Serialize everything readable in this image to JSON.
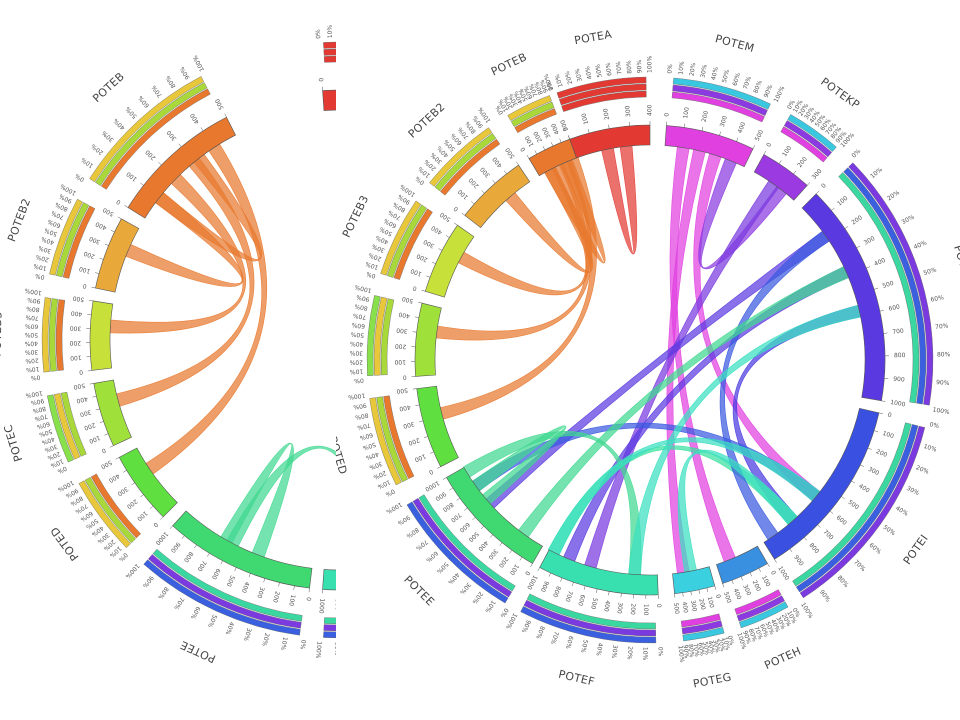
{
  "figure": {
    "panels": [
      {
        "id": "left",
        "cropped_right": true,
        "segments": [
          {
            "name": "POTEA",
            "color": "#e23a33",
            "max": 500,
            "ticks": [
              "0",
              "100",
              "200",
              "300",
              "400"
            ],
            "bars": [
              "#e23a33",
              "#e23a33",
              "#e23a33"
            ],
            "label_drawn": true
          },
          {
            "name": "POTEM",
            "color": "#e040e0",
            "max": 200,
            "ticks": [
              "0",
              "100"
            ],
            "bars": [
              "#e040e0",
              "#8a3ae0",
              "#3ac8e0"
            ],
            "label_drawn": false
          },
          {
            "name": "POTEB",
            "color": "#e8782e",
            "max": 500,
            "ticks": [
              "0",
              "100",
              "200",
              "300",
              "400",
              "500"
            ],
            "bars": [
              "#e8782e",
              "#a8d83a",
              "#e8c83a"
            ],
            "label_drawn": true
          },
          {
            "name": "POTEB2",
            "color": "#e8a83a",
            "max": 500,
            "ticks": [
              "0",
              "100",
              "200",
              "300",
              "400",
              "500"
            ],
            "bars": [
              "#e8782e",
              "#a8d83a",
              "#e8c83a"
            ],
            "label_drawn": true
          },
          {
            "name": "POTEB3",
            "color": "#c8e03a",
            "max": 500,
            "ticks": [
              "0",
              "100",
              "200",
              "300",
              "400",
              "500"
            ],
            "bars": [
              "#e8782e",
              "#a8d83a",
              "#e8c83a"
            ],
            "label_drawn": true
          },
          {
            "name": "POTEC",
            "color": "#a0e03a",
            "max": 500,
            "ticks": [
              "0",
              "100",
              "200",
              "300",
              "400",
              "500"
            ],
            "bars": [
              "#a8d83a",
              "#e8c83a",
              "#88e04a"
            ],
            "label_drawn": true
          },
          {
            "name": "POTED",
            "color": "#60e040",
            "max": 500,
            "ticks": [
              "0",
              "100",
              "200",
              "300",
              "400",
              "500"
            ],
            "bars": [
              "#e8782e",
              "#a8d83a",
              "#e8c83a"
            ],
            "label_drawn": true
          },
          {
            "name": "POTEE",
            "color": "#40d870",
            "max": 1000,
            "ticks": [
              "0",
              "100",
              "200",
              "300",
              "400",
              "500",
              "600",
              "700",
              "800",
              "900",
              "1000"
            ],
            "bars": [
              "#3ad8a0",
              "#7a3ae0",
              "#3a60e0"
            ],
            "label_drawn": true
          },
          {
            "name": "POTEF",
            "color": "#38e0b0",
            "max": 1000,
            "ticks": [
              "0",
              "100",
              "200",
              "300",
              "400",
              "500",
              "600",
              "700",
              "800",
              "900",
              "1000"
            ],
            "bars": [
              "#3ad8a0",
              "#7a3ae0",
              "#3a60e0"
            ],
            "label_drawn": false
          }
        ]
      },
      {
        "id": "right",
        "cropped_right": false,
        "segments": [
          {
            "name": "POTEA",
            "color": "#e23a33",
            "max": 500,
            "ticks": [
              "0",
              "100",
              "200",
              "300",
              "400"
            ],
            "bars": [
              "#e23a33",
              "#e23a33",
              "#e23a33"
            ],
            "label_drawn": true
          },
          {
            "name": "POTEM",
            "color": "#e040e0",
            "max": 500,
            "ticks": [
              "0",
              "100",
              "200",
              "300",
              "400",
              "500"
            ],
            "bars": [
              "#e040e0",
              "#8a3ae0",
              "#3ac8e0"
            ],
            "label_drawn": true
          },
          {
            "name": "POTEKP",
            "color": "#9a3ae0",
            "max": 300,
            "ticks": [
              "0",
              "100",
              "200",
              "300"
            ],
            "bars": [
              "#e040e0",
              "#8a3ae0",
              "#3ac8e0"
            ],
            "label_drawn": true
          },
          {
            "name": "POTEJ",
            "color": "#5a3ae0",
            "max": 1000,
            "ticks": [
              "0",
              "100",
              "200",
              "300",
              "400",
              "500",
              "600",
              "700",
              "800",
              "900",
              "1000"
            ],
            "bars": [
              "#3ad8a0",
              "#3a60e0",
              "#7a3ae0"
            ],
            "label_drawn": true
          },
          {
            "name": "POTEI",
            "color": "#3a50e0",
            "max": 1000,
            "ticks": [
              "0",
              "100",
              "200",
              "300",
              "400",
              "500",
              "600",
              "700",
              "800",
              "900",
              "1000"
            ],
            "bars": [
              "#3ad8a0",
              "#3a60e0",
              "#7a3ae0"
            ],
            "label_drawn": true
          },
          {
            "name": "POTEH",
            "color": "#3a90e0",
            "max": 500,
            "ticks": [
              "0",
              "100",
              "200",
              "300",
              "400",
              "500"
            ],
            "bars": [
              "#e040e0",
              "#8a3ae0",
              "#3ac8e0"
            ],
            "label_drawn": true
          },
          {
            "name": "POTEG",
            "color": "#3ad0e0",
            "max": 500,
            "ticks": [
              "0",
              "100",
              "200",
              "300",
              "400",
              "500"
            ],
            "bars": [
              "#e040e0",
              "#8a3ae0",
              "#3ac8e0"
            ],
            "label_drawn": true
          },
          {
            "name": "POTEF",
            "color": "#38e0b0",
            "max": 1000,
            "ticks": [
              "0",
              "100",
              "200",
              "300",
              "400",
              "500",
              "600",
              "700",
              "800",
              "900",
              "1000"
            ],
            "bars": [
              "#3ad8a0",
              "#7a3ae0",
              "#3a60e0"
            ],
            "label_drawn": true
          },
          {
            "name": "POTEE",
            "color": "#40d870",
            "max": 1000,
            "ticks": [
              "0",
              "100",
              "200",
              "300",
              "400",
              "500",
              "600",
              "700",
              "800",
              "900",
              "1000"
            ],
            "bars": [
              "#3ad8a0",
              "#7a3ae0",
              "#3a60e0"
            ],
            "label_drawn": true
          },
          {
            "name": "POTED",
            "color": "#60e040",
            "max": 500,
            "ticks": [
              "0",
              "100",
              "200",
              "300",
              "400",
              "500"
            ],
            "bars": [
              "#e8782e",
              "#a8d83a",
              "#e8c83a"
            ],
            "label_drawn": true
          },
          {
            "name": "POTEC",
            "color": "#a0e03a",
            "max": 500,
            "ticks": [
              "0",
              "100",
              "200",
              "300",
              "400",
              "500"
            ],
            "bars": [
              "#a8d83a",
              "#e8c83a",
              "#88e04a"
            ],
            "label_drawn": true
          },
          {
            "name": "POTEB3",
            "color": "#c8e03a",
            "max": 500,
            "ticks": [
              "0",
              "100",
              "200",
              "300",
              "400",
              "500"
            ],
            "bars": [
              "#e8782e",
              "#a8d83a",
              "#e8c83a"
            ],
            "label_drawn": true
          },
          {
            "name": "POTEB2",
            "color": "#e8a83a",
            "max": 500,
            "ticks": [
              "0",
              "100",
              "200",
              "300",
              "400",
              "500"
            ],
            "bars": [
              "#e8782e",
              "#a8d83a",
              "#e8c83a"
            ],
            "label_drawn": true
          },
          {
            "name": "POTEB",
            "color": "#e8782e",
            "max": 500,
            "ticks": [
              "0",
              "100",
              "200",
              "300",
              "400",
              "500"
            ],
            "bars": [
              "#e8782e",
              "#a8d83a",
              "#e8c83a"
            ],
            "label_drawn": true
          }
        ]
      }
    ],
    "percent_ticks": [
      "0%",
      "10%",
      "20%",
      "30%",
      "40%",
      "50%",
      "60%",
      "70%",
      "80%",
      "90%",
      "100%"
    ],
    "links": {
      "left": [
        {
          "from": "POTEB",
          "to": "POTEB2",
          "color": "#e8782e"
        },
        {
          "from": "POTEB",
          "to": "POTEB3",
          "color": "#e8782e"
        },
        {
          "from": "POTEB",
          "to": "POTEC",
          "color": "#e8782e"
        },
        {
          "from": "POTEB",
          "to": "POTED",
          "color": "#e8782e"
        },
        {
          "from": "POTEB",
          "to": "POTEB",
          "color": "#e8782e"
        },
        {
          "from": "POTEA",
          "to": "POTEA",
          "color": "#e23a33"
        },
        {
          "from": "POTEE",
          "to": "POTEE",
          "color": "#40d890"
        },
        {
          "from": "POTEE",
          "to": "POTEF",
          "color": "#40d890"
        },
        {
          "from": "POTEE",
          "to": "POTEJ",
          "color": "#6a3ae0"
        },
        {
          "from": "POTEE",
          "to": "POTEI",
          "color": "#3a5ae0"
        },
        {
          "from": "POTEF",
          "to": "POTEJ",
          "color": "#3ae0a0"
        },
        {
          "from": "POTEF",
          "to": "POTEI",
          "color": "#3ae0a0"
        }
      ],
      "right": [
        {
          "from": "POTEB",
          "to": "POTEB2",
          "color": "#e8782e"
        },
        {
          "from": "POTEB",
          "to": "POTEB3",
          "color": "#e8782e"
        },
        {
          "from": "POTEB",
          "to": "POTEC",
          "color": "#e8782e"
        },
        {
          "from": "POTEB",
          "to": "POTED",
          "color": "#e8782e"
        },
        {
          "from": "POTEB",
          "to": "POTEB",
          "color": "#e8782e"
        },
        {
          "from": "POTEA",
          "to": "POTEA",
          "color": "#e23a33"
        },
        {
          "from": "POTEM",
          "to": "POTEH",
          "color": "#e040e0"
        },
        {
          "from": "POTEM",
          "to": "POTEG",
          "color": "#e040e0"
        },
        {
          "from": "POTEM",
          "to": "POTEI",
          "color": "#e040e0"
        },
        {
          "from": "POTEM",
          "to": "POTEKP",
          "color": "#8a3ae0"
        },
        {
          "from": "POTEKP",
          "to": "POTEF",
          "color": "#7a3ae0"
        },
        {
          "from": "POTEJ",
          "to": "POTEE",
          "color": "#5a3ae0"
        },
        {
          "from": "POTEJ",
          "to": "POTEF",
          "color": "#5a3ae0"
        },
        {
          "from": "POTEJ",
          "to": "POTEI",
          "color": "#4a3ae0"
        },
        {
          "from": "POTEI",
          "to": "POTEE",
          "color": "#3a5ae0"
        },
        {
          "from": "POTEI",
          "to": "POTEF",
          "color": "#3ae0a0"
        },
        {
          "from": "POTEI",
          "to": "POTEJ",
          "color": "#3a5ae0"
        },
        {
          "from": "POTEE",
          "to": "POTEE",
          "color": "#40d890"
        },
        {
          "from": "POTEE",
          "to": "POTEF",
          "color": "#40d890"
        },
        {
          "from": "POTEE",
          "to": "POTEJ",
          "color": "#40d890"
        },
        {
          "from": "POTEF",
          "to": "POTEI",
          "color": "#3ae0c0"
        },
        {
          "from": "POTEF",
          "to": "POTEJ",
          "color": "#3ae0c0"
        },
        {
          "from": "POTEG",
          "to": "POTEI",
          "color": "#3ae0c0"
        }
      ]
    }
  }
}
